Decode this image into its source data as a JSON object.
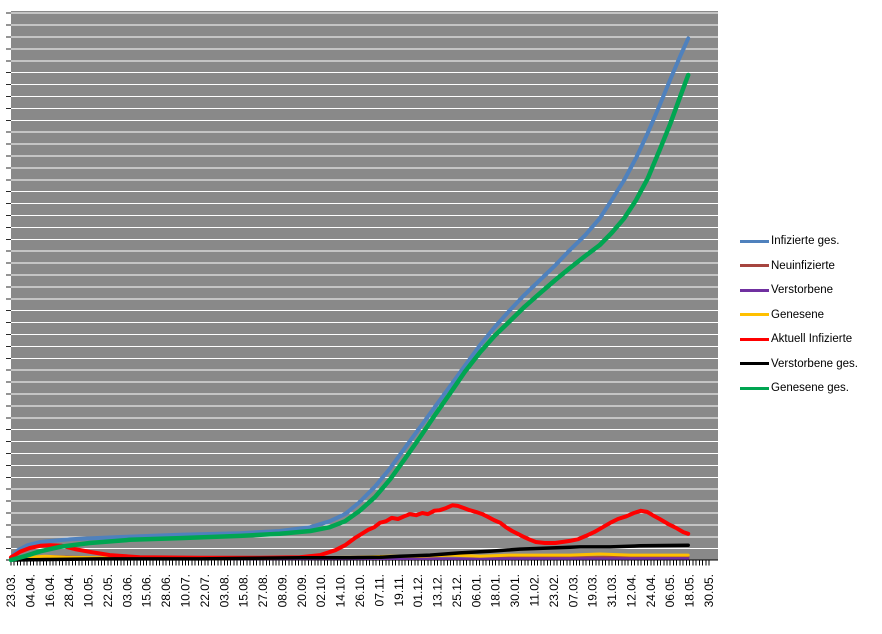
{
  "window": {
    "title": "Corona-Statistik Diagramm"
  },
  "colors": {
    "plot_background": "#898989",
    "gridline": "#ffffff",
    "axis_line": "#000000",
    "tick": "#2b2b2b",
    "label_text": "#000000",
    "page_background": "#ffffff"
  },
  "chart_data": {
    "type": "line",
    "title": "",
    "xlabel": "",
    "ylabel": "",
    "y_axis_labels_visible": false,
    "gridline_count": 46,
    "legend_position": "right",
    "x_tick_count": 217,
    "x_labels": [
      "23.03.",
      "04.04.",
      "16.04.",
      "28.04.",
      "10.05.",
      "22.05.",
      "03.06.",
      "15.06.",
      "28.06.",
      "10.07.",
      "22.07.",
      "03.08.",
      "15.08.",
      "27.08.",
      "08.09.",
      "20.09.",
      "02.10.",
      "14.10.",
      "26.10.",
      "07.11.",
      "19.11.",
      "01.12.",
      "13.12.",
      "25.12.",
      "06.01.",
      "18.01.",
      "30.01.",
      "11.02.",
      "23.02.",
      "07.03.",
      "19.03.",
      "31.03.",
      "12.04.",
      "24.04.",
      "06.05.",
      "18.05.",
      "30.05."
    ],
    "y_unit": "percent_of_plot_height",
    "series": [
      {
        "name": "Infizierte ges.",
        "color": "#4F81BD",
        "width": 4,
        "points": [
          [
            0,
            0.4
          ],
          [
            0.01,
            1.8
          ],
          [
            0.024,
            2.7
          ],
          [
            0.042,
            3.3
          ],
          [
            0.085,
            3.8
          ],
          [
            0.157,
            4.2
          ],
          [
            0.243,
            4.6
          ],
          [
            0.329,
            4.9
          ],
          [
            0.386,
            5.3
          ],
          [
            0.43,
            6.0
          ],
          [
            0.458,
            7.1
          ],
          [
            0.48,
            8.4
          ],
          [
            0.501,
            10.6
          ],
          [
            0.523,
            13.4
          ],
          [
            0.545,
            16.8
          ],
          [
            0.566,
            20.5
          ],
          [
            0.588,
            24.3
          ],
          [
            0.609,
            28.0
          ],
          [
            0.631,
            31.8
          ],
          [
            0.652,
            35.5
          ],
          [
            0.674,
            39.3
          ],
          [
            0.695,
            42.6
          ],
          [
            0.717,
            45.7
          ],
          [
            0.738,
            48.5
          ],
          [
            0.76,
            51.2
          ],
          [
            0.782,
            53.9
          ],
          [
            0.803,
            56.7
          ],
          [
            0.825,
            59.4
          ],
          [
            0.846,
            62.5
          ],
          [
            0.863,
            65.8
          ],
          [
            0.881,
            69.5
          ],
          [
            0.898,
            73.5
          ],
          [
            0.915,
            78.1
          ],
          [
            0.932,
            83.2
          ],
          [
            0.947,
            87.8
          ],
          [
            0.961,
            92.0
          ],
          [
            0.973,
            95.4
          ]
        ]
      },
      {
        "name": "Neuinfizierte",
        "color": "#A6453F",
        "width": 2.5,
        "points": [
          [
            0,
            0.4
          ],
          [
            0.056,
            0.7
          ],
          [
            0.128,
            0.4
          ],
          [
            0.272,
            0.2
          ],
          [
            0.415,
            0.4
          ],
          [
            0.487,
            0.5
          ],
          [
            0.559,
            0.7
          ],
          [
            0.602,
            0.7
          ],
          [
            0.638,
            0.9
          ],
          [
            0.674,
            0.7
          ],
          [
            0.731,
            0.5
          ],
          [
            0.789,
            0.4
          ],
          [
            0.846,
            0.5
          ],
          [
            0.896,
            0.7
          ],
          [
            0.94,
            0.5
          ],
          [
            0.973,
            0.5
          ]
        ]
      },
      {
        "name": "Verstorbene",
        "color": "#7030A0",
        "width": 2.5,
        "points": [
          [
            0,
            0.2
          ],
          [
            0.415,
            0.2
          ],
          [
            0.973,
            0.3
          ]
        ]
      },
      {
        "name": "Genesene",
        "color": "#FFC000",
        "width": 3,
        "points": [
          [
            0,
            0.2
          ],
          [
            0.027,
            0.5
          ],
          [
            0.049,
            0.7
          ],
          [
            0.078,
            0.5
          ],
          [
            0.128,
            0.4
          ],
          [
            0.272,
            0.2
          ],
          [
            0.415,
            0.4
          ],
          [
            0.501,
            0.5
          ],
          [
            0.545,
            0.7
          ],
          [
            0.588,
            0.7
          ],
          [
            0.631,
            0.9
          ],
          [
            0.674,
            0.7
          ],
          [
            0.717,
            0.9
          ],
          [
            0.76,
            0.9
          ],
          [
            0.803,
            0.9
          ],
          [
            0.846,
            1.1
          ],
          [
            0.89,
            0.9
          ],
          [
            0.932,
            0.9
          ],
          [
            0.973,
            0.9
          ]
        ]
      },
      {
        "name": "Aktuell Infizierte",
        "color": "#FF0000",
        "width": 4,
        "points": [
          [
            0,
            0.5
          ],
          [
            0.013,
            1.5
          ],
          [
            0.027,
            2.2
          ],
          [
            0.042,
            2.6
          ],
          [
            0.056,
            2.7
          ],
          [
            0.073,
            2.6
          ],
          [
            0.092,
            2.0
          ],
          [
            0.113,
            1.5
          ],
          [
            0.142,
            0.9
          ],
          [
            0.185,
            0.5
          ],
          [
            0.272,
            0.4
          ],
          [
            0.358,
            0.4
          ],
          [
            0.415,
            0.5
          ],
          [
            0.444,
            0.9
          ],
          [
            0.466,
            1.8
          ],
          [
            0.48,
            2.7
          ],
          [
            0.494,
            4.0
          ],
          [
            0.504,
            4.8
          ],
          [
            0.513,
            5.5
          ],
          [
            0.522,
            6.0
          ],
          [
            0.53,
            6.8
          ],
          [
            0.539,
            7.1
          ],
          [
            0.547,
            7.7
          ],
          [
            0.556,
            7.5
          ],
          [
            0.565,
            8.0
          ],
          [
            0.573,
            8.4
          ],
          [
            0.582,
            8.2
          ],
          [
            0.591,
            8.6
          ],
          [
            0.599,
            8.4
          ],
          [
            0.608,
            9.0
          ],
          [
            0.616,
            9.1
          ],
          [
            0.625,
            9.5
          ],
          [
            0.634,
            10.0
          ],
          [
            0.642,
            9.9
          ],
          [
            0.651,
            9.5
          ],
          [
            0.659,
            9.1
          ],
          [
            0.668,
            8.8
          ],
          [
            0.677,
            8.4
          ],
          [
            0.685,
            7.9
          ],
          [
            0.694,
            7.3
          ],
          [
            0.703,
            6.8
          ],
          [
            0.711,
            6.0
          ],
          [
            0.72,
            5.3
          ],
          [
            0.728,
            4.8
          ],
          [
            0.737,
            4.2
          ],
          [
            0.746,
            3.7
          ],
          [
            0.754,
            3.3
          ],
          [
            0.767,
            3.1
          ],
          [
            0.782,
            3.1
          ],
          [
            0.792,
            3.3
          ],
          [
            0.803,
            3.5
          ],
          [
            0.815,
            3.8
          ],
          [
            0.826,
            4.4
          ],
          [
            0.838,
            5.1
          ],
          [
            0.849,
            5.9
          ],
          [
            0.861,
            6.8
          ],
          [
            0.872,
            7.5
          ],
          [
            0.884,
            8.0
          ],
          [
            0.895,
            8.6
          ],
          [
            0.905,
            9.0
          ],
          [
            0.914,
            8.8
          ],
          [
            0.922,
            8.2
          ],
          [
            0.932,
            7.5
          ],
          [
            0.944,
            6.6
          ],
          [
            0.955,
            5.9
          ],
          [
            0.966,
            5.1
          ],
          [
            0.973,
            4.8
          ]
        ]
      },
      {
        "name": "Verstorbene ges.",
        "color": "#000000",
        "width": 3.5,
        "points": [
          [
            0,
            0
          ],
          [
            0.128,
            0.2
          ],
          [
            0.272,
            0.2
          ],
          [
            0.415,
            0.4
          ],
          [
            0.487,
            0.4
          ],
          [
            0.53,
            0.5
          ],
          [
            0.559,
            0.7
          ],
          [
            0.602,
            0.9
          ],
          [
            0.645,
            1.3
          ],
          [
            0.688,
            1.6
          ],
          [
            0.731,
            2.0
          ],
          [
            0.774,
            2.2
          ],
          [
            0.818,
            2.4
          ],
          [
            0.861,
            2.4
          ],
          [
            0.904,
            2.6
          ],
          [
            0.973,
            2.7
          ]
        ]
      },
      {
        "name": "Genesene ges.",
        "color": "#00A551",
        "width": 4.5,
        "points": [
          [
            0,
            0
          ],
          [
            0.02,
            0.7
          ],
          [
            0.042,
            1.6
          ],
          [
            0.07,
            2.4
          ],
          [
            0.113,
            3.1
          ],
          [
            0.171,
            3.7
          ],
          [
            0.243,
            4.0
          ],
          [
            0.329,
            4.4
          ],
          [
            0.386,
            4.8
          ],
          [
            0.43,
            5.3
          ],
          [
            0.458,
            6.0
          ],
          [
            0.48,
            7.1
          ],
          [
            0.501,
            9.0
          ],
          [
            0.523,
            11.5
          ],
          [
            0.545,
            14.8
          ],
          [
            0.566,
            18.5
          ],
          [
            0.588,
            22.5
          ],
          [
            0.609,
            26.5
          ],
          [
            0.631,
            30.5
          ],
          [
            0.652,
            34.4
          ],
          [
            0.674,
            38.0
          ],
          [
            0.695,
            41.0
          ],
          [
            0.717,
            43.7
          ],
          [
            0.738,
            46.3
          ],
          [
            0.76,
            48.8
          ],
          [
            0.782,
            51.2
          ],
          [
            0.803,
            53.4
          ],
          [
            0.825,
            55.6
          ],
          [
            0.846,
            57.6
          ],
          [
            0.863,
            59.8
          ],
          [
            0.881,
            62.5
          ],
          [
            0.898,
            65.8
          ],
          [
            0.915,
            69.8
          ],
          [
            0.932,
            75.0
          ],
          [
            0.947,
            79.7
          ],
          [
            0.961,
            84.6
          ],
          [
            0.973,
            88.7
          ]
        ]
      }
    ]
  }
}
